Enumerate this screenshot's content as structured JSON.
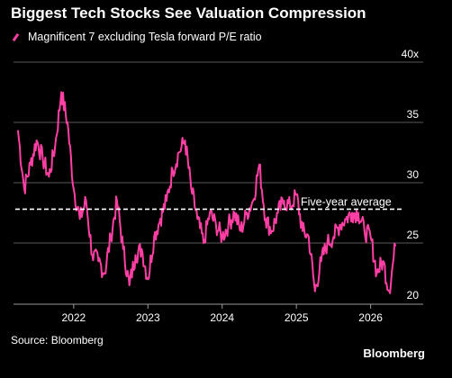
{
  "colors": {
    "background": "#000000",
    "series": "#ff3fa4",
    "grid": "#5a5a5a",
    "text": "#ffffff",
    "average_line": "#ffffff"
  },
  "chart_data": {
    "type": "line",
    "title": "Biggest Tech Stocks See Valuation Compression",
    "series": [
      {
        "name": "Magnificent 7 excluding Tesla forward P/E ratio",
        "x": [
          "2021-04",
          "2021-05",
          "2021-06",
          "2021-07",
          "2021-08",
          "2021-09",
          "2021-10",
          "2021-11",
          "2021-12",
          "2022-01",
          "2022-02",
          "2022-03",
          "2022-04",
          "2022-05",
          "2022-06",
          "2022-07",
          "2022-08",
          "2022-09",
          "2022-10",
          "2022-11",
          "2022-12",
          "2023-01",
          "2023-02",
          "2023-03",
          "2023-04",
          "2023-05",
          "2023-06",
          "2023-07",
          "2023-08",
          "2023-09",
          "2023-10",
          "2023-11",
          "2023-12",
          "2024-01",
          "2024-02",
          "2024-03",
          "2024-04",
          "2024-05",
          "2024-06",
          "2024-07",
          "2024-08",
          "2024-09",
          "2024-10",
          "2024-11",
          "2024-12",
          "2025-01",
          "2025-02",
          "2025-03",
          "2025-04",
          "2025-05",
          "2025-06",
          "2025-07",
          "2025-08",
          "2025-09",
          "2025-10",
          "2025-11",
          "2025-12",
          "2026-01",
          "2026-02",
          "2026-03",
          "2026-04",
          "2026-05"
        ],
        "values": [
          34.3,
          29.5,
          31.5,
          33.5,
          32.0,
          30.5,
          33.0,
          37.5,
          35.0,
          29.5,
          27.0,
          28.5,
          24.0,
          23.5,
          22.5,
          25.5,
          28.5,
          24.5,
          21.5,
          24.0,
          24.5,
          22.0,
          25.5,
          27.0,
          28.5,
          31.0,
          32.5,
          33.5,
          29.5,
          27.0,
          25.0,
          27.5,
          26.5,
          25.5,
          26.5,
          27.5,
          26.0,
          27.5,
          28.5,
          31.5,
          27.0,
          26.0,
          27.5,
          28.5,
          28.0,
          29.0,
          26.0,
          25.5,
          21.0,
          23.5,
          25.0,
          25.5,
          26.5,
          27.0,
          27.5,
          27.5,
          26.0,
          25.5,
          22.5,
          23.5,
          21.0,
          24.8
        ]
      }
    ],
    "y_axis": {
      "min": 20,
      "max": 40,
      "ticks": [
        "20",
        "25",
        "30",
        "35",
        "40x"
      ]
    },
    "x_axis": {
      "ticks": [
        "2022",
        "2023",
        "2024",
        "2025",
        "2026"
      ]
    },
    "annotations": [
      {
        "type": "hline",
        "y": 27.8,
        "label": "Five-year average"
      }
    ],
    "grid": true,
    "legend": "top-left"
  },
  "source": "Source: Bloomberg",
  "brand": "Bloomberg"
}
